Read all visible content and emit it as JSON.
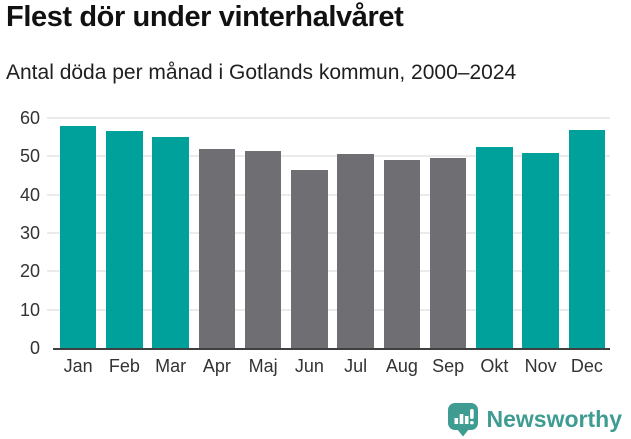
{
  "header": {
    "title": "Flest dör under vinterhalvåret",
    "subtitle": "Antal döda per månad i Gotlands kommun, 2000–2024"
  },
  "chart_data": {
    "type": "bar",
    "title": "Flest dör under vinterhalvåret",
    "subtitle": "Antal döda per månad i Gotlands kommun, 2000–2024",
    "categories": [
      "Jan",
      "Feb",
      "Mar",
      "Apr",
      "Maj",
      "Jun",
      "Jul",
      "Aug",
      "Sep",
      "Okt",
      "Nov",
      "Dec"
    ],
    "values": [
      58,
      56.5,
      55,
      52,
      51.5,
      46.5,
      50.5,
      49,
      49.5,
      52.5,
      51,
      57
    ],
    "bar_highlighted": [
      true,
      true,
      true,
      false,
      false,
      false,
      false,
      false,
      false,
      true,
      true,
      true
    ],
    "colors": {
      "highlight": "#00a09b",
      "other": "#6f6e73"
    },
    "xlabel": "",
    "ylabel": "",
    "ylim": [
      0,
      60
    ],
    "yticks": [
      0,
      10,
      20,
      30,
      40,
      50,
      60
    ],
    "grid": true,
    "legend": "none"
  },
  "footer": {
    "brand": "Newsworthy",
    "logo_icon": "newsworthy-badge-bar-chart-exclamation",
    "brand_color": "#3f9c92"
  },
  "colors": {
    "axis_line": "#3f3f3f",
    "gridline": "#ebebeb",
    "title_text": "#111111",
    "body_text": "#333333",
    "background": "#ffffff"
  }
}
